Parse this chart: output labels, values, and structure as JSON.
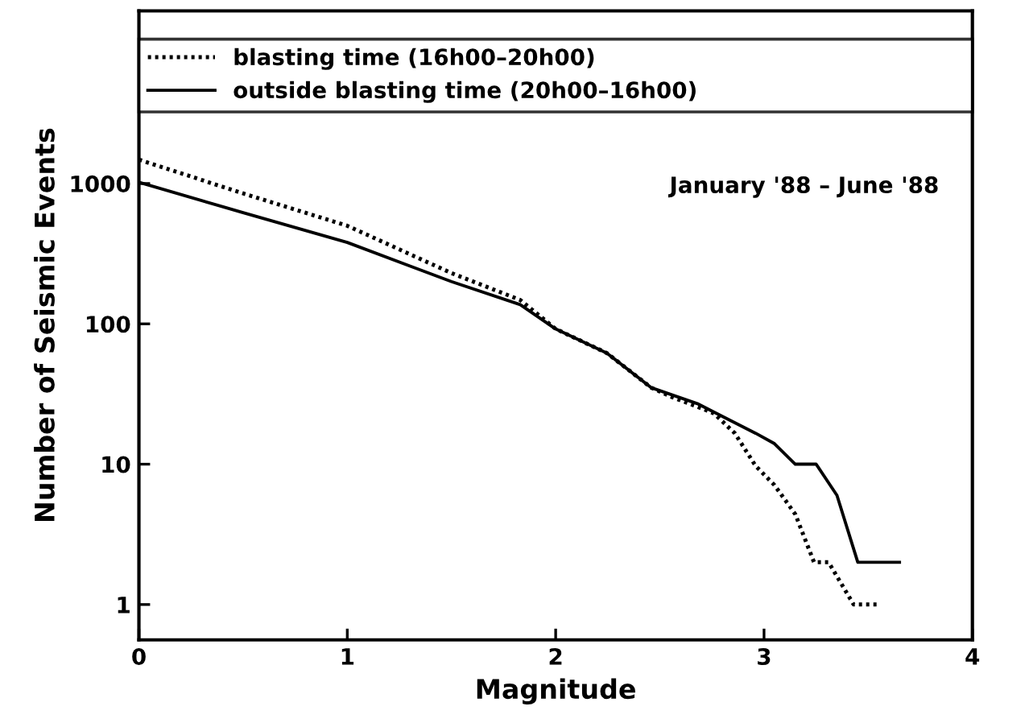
{
  "chart_data": {
    "type": "line",
    "xlabel": "Magnitude",
    "ylabel": "Number of Seismic Events",
    "annotations": [
      "January '88 – June '88"
    ],
    "log": "y",
    "xlim": [
      0,
      4
    ],
    "xticks": [
      0,
      1,
      2,
      3,
      4
    ],
    "ylim": [
      0.56,
      17000
    ],
    "yticks": [
      1,
      10,
      100,
      1000
    ],
    "grid": false,
    "legend": "top",
    "marker": "none",
    "series": [
      {
        "name": "blasting time (16h00–20h00)",
        "color": "#000000",
        "line_style": "dotted",
        "x": [
          0,
          0.5,
          1,
          1.5,
          1.83,
          2.0,
          2.245,
          2.46,
          2.56,
          2.7,
          2.76,
          2.86,
          2.96,
          3.05,
          3.15,
          3.24,
          3.31,
          3.43,
          3.54
        ],
        "values": [
          1480,
          850,
          500,
          230,
          148,
          92,
          62,
          35,
          30,
          25,
          23,
          16.6,
          9.7,
          7.1,
          4.4,
          2,
          2,
          1,
          1
        ]
      },
      {
        "name": "outside blasting time (20h00–16h00)",
        "color": "#000000",
        "line_style": "solid",
        "x": [
          0,
          0.5,
          1,
          1.5,
          1.83,
          2.0,
          2.245,
          2.46,
          2.68,
          2.96,
          3.05,
          3.15,
          3.25,
          3.35,
          3.45,
          3.65
        ],
        "values": [
          1020,
          620,
          380,
          200,
          137,
          92,
          62,
          35,
          27,
          16.6,
          14,
          10,
          10,
          6,
          2,
          2
        ]
      }
    ]
  }
}
